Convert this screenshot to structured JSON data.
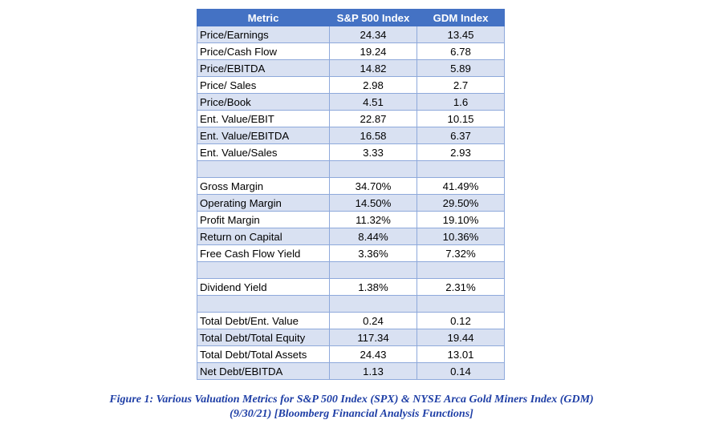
{
  "table": {
    "headers": [
      "Metric",
      "S&P 500 Index",
      "GDM Index"
    ],
    "rows": [
      [
        "Price/Earnings",
        "24.34",
        "13.45"
      ],
      [
        "Price/Cash Flow",
        "19.24",
        "6.78"
      ],
      [
        "Price/EBITDA",
        "14.82",
        "5.89"
      ],
      [
        "Price/ Sales",
        "2.98",
        "2.7"
      ],
      [
        "Price/Book",
        "4.51",
        "1.6"
      ],
      [
        "Ent. Value/EBIT",
        "22.87",
        "10.15"
      ],
      [
        "Ent. Value/EBITDA",
        "16.58",
        "6.37"
      ],
      [
        "Ent. Value/Sales",
        "3.33",
        "2.93"
      ],
      [
        "",
        "",
        ""
      ],
      [
        "Gross Margin",
        "34.70%",
        "41.49%"
      ],
      [
        "Operating Margin",
        "14.50%",
        "29.50%"
      ],
      [
        "Profit Margin",
        "11.32%",
        "19.10%"
      ],
      [
        "Return on Capital",
        "8.44%",
        "10.36%"
      ],
      [
        "Free Cash Flow Yield",
        "3.36%",
        "7.32%"
      ],
      [
        "",
        "",
        ""
      ],
      [
        "Dividend Yield",
        "1.38%",
        "2.31%"
      ],
      [
        "",
        "",
        ""
      ],
      [
        "Total Debt/Ent. Value",
        "0.24",
        "0.12"
      ],
      [
        "Total Debt/Total Equity",
        "117.34",
        "19.44"
      ],
      [
        "Total Debt/Total Assets",
        "24.43",
        "13.01"
      ],
      [
        "Net Debt/EBITDA",
        "1.13",
        "0.14"
      ]
    ]
  },
  "caption": {
    "line1": "Figure 1:  Various Valuation Metrics for S&P 500 Index (SPX) & NYSE Arca Gold Miners Index (GDM)",
    "line2": "(9/30/21) [Bloomberg Financial Analysis Functions]"
  },
  "colors": {
    "header_bg": "#4472C4",
    "band_bg": "#D9E1F2",
    "border": "#8EA9DB",
    "caption_text": "#1F3FA6"
  }
}
